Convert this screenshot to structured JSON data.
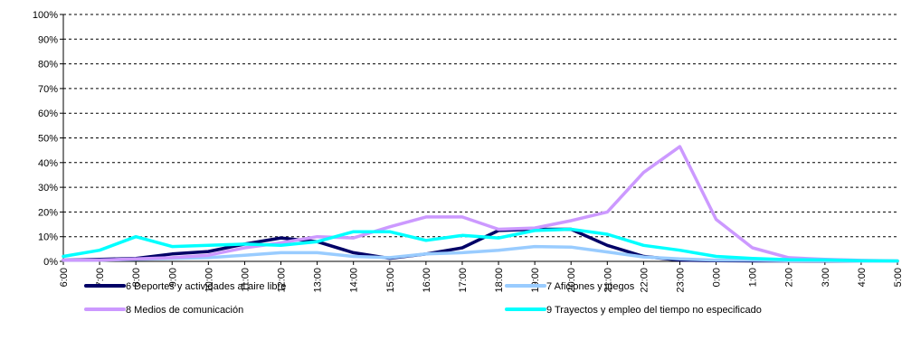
{
  "chart_data": {
    "type": "line",
    "categories": [
      "6:00",
      "7:00",
      "8:00",
      "9:00",
      "10:00",
      "11:00",
      "12:00",
      "13:00",
      "14:00",
      "15:00",
      "16:00",
      "17:00",
      "18:00",
      "19:00",
      "20:00",
      "21:00",
      "22:00",
      "23:00",
      "0:00",
      "1:00",
      "2:00",
      "3:00",
      "4:00",
      "5:00"
    ],
    "y_ticks": [
      "0%",
      "10%",
      "20%",
      "30%",
      "40%",
      "50%",
      "60%",
      "70%",
      "80%",
      "90%",
      "100%"
    ],
    "ylim": [
      0,
      100
    ],
    "grid": true,
    "legend_position": "bottom",
    "series": [
      {
        "name": "6 Deportes y actividades al aire libre",
        "color": "#000066",
        "values": [
          0.5,
          0.8,
          1.2,
          3,
          4,
          7,
          9.5,
          8,
          3.5,
          1.2,
          3,
          5.5,
          12.5,
          13,
          13,
          6.5,
          2,
          0.5,
          0.3,
          0.2,
          0.2,
          0.1,
          0.1,
          0.1
        ]
      },
      {
        "name": "7 Aficiones y juegos",
        "color": "#99CCFF",
        "values": [
          0.5,
          0.5,
          0.8,
          1.2,
          1.5,
          2.5,
          3.5,
          3.5,
          2,
          1.5,
          3,
          3.5,
          4.5,
          6,
          5.8,
          3.8,
          1.8,
          1,
          0.5,
          0.5,
          0.3,
          0.2,
          0.1,
          0.1
        ]
      },
      {
        "name": "8 Medios de comunicación",
        "color": "#CC99FF",
        "values": [
          0.5,
          0.5,
          1,
          1.5,
          2.5,
          5.5,
          7.5,
          10,
          9.5,
          14,
          18,
          18,
          13,
          13.5,
          16.5,
          20,
          36,
          46.5,
          17,
          5.5,
          1.5,
          0.8,
          0.4,
          0.2
        ]
      },
      {
        "name": "9 Trayectos y empleo del tiempo no especificado",
        "color": "#00FFFF",
        "values": [
          2,
          4.5,
          10,
          6,
          6.5,
          7,
          6.5,
          8,
          12,
          12,
          8.5,
          10.5,
          9.5,
          12.5,
          13,
          11,
          6.5,
          4.5,
          2,
          1.2,
          0.7,
          0.6,
          0.3,
          0.2
        ]
      }
    ]
  }
}
